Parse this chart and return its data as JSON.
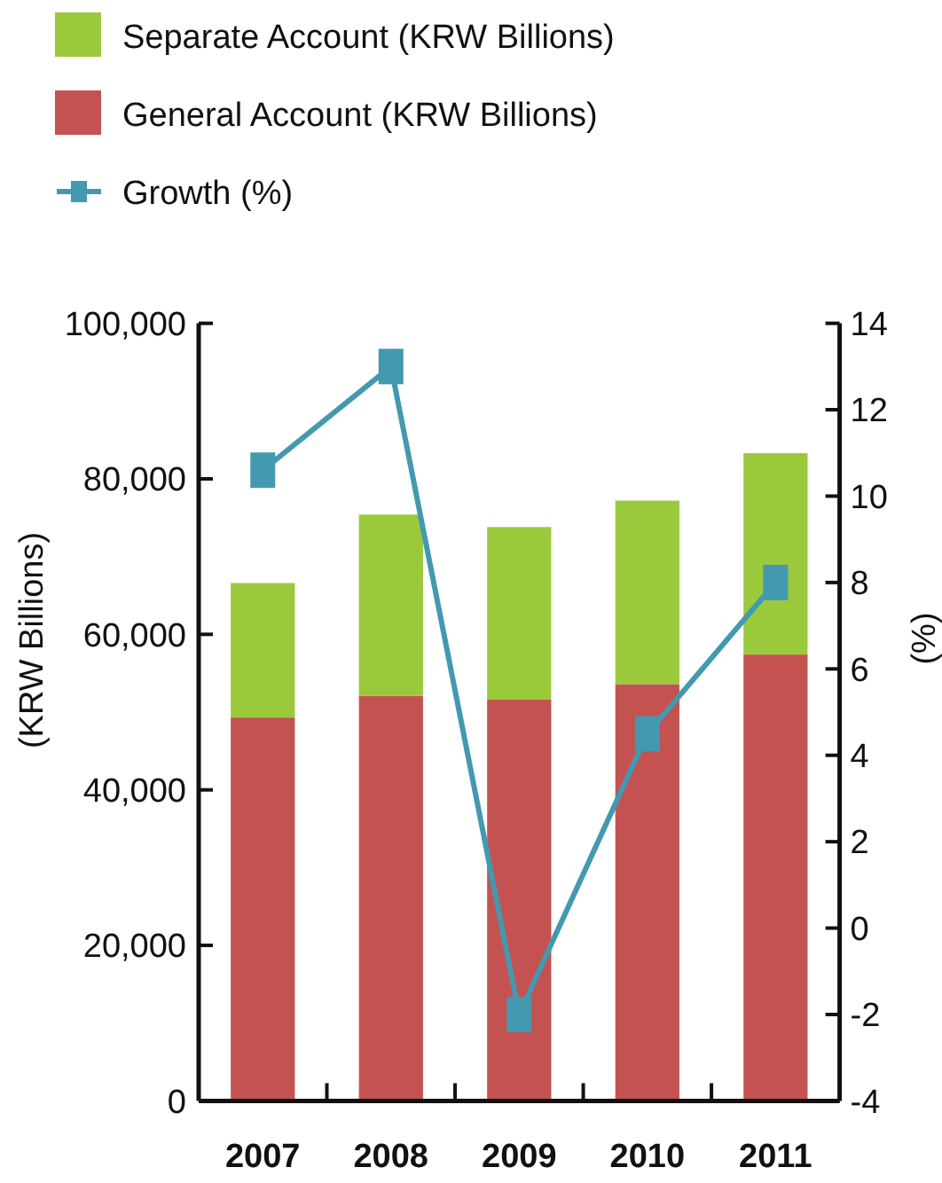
{
  "chart_data": {
    "type": "bar",
    "stacked": true,
    "categories": [
      "2007",
      "2008",
      "2009",
      "2010",
      "2011"
    ],
    "series": [
      {
        "name": "General Account (KRW Billions)",
        "color": "#c45250",
        "values": [
          49300,
          52100,
          51600,
          53600,
          57400
        ]
      },
      {
        "name": "Separate Account (KRW Billions)",
        "color": "#9ac93c",
        "values": [
          17300,
          23300,
          22200,
          23600,
          25900
        ]
      },
      {
        "name": "Growth (%)",
        "type": "line",
        "axis": "y2",
        "color": "#4399b0",
        "values": [
          10.6,
          13.0,
          -2.0,
          4.5,
          8.0
        ]
      }
    ],
    "ylabel": "(KRW Billions)",
    "y2label": "(%)",
    "ylim": [
      0,
      100000
    ],
    "yticks": [
      0,
      {
        "value": 20000,
        "label": "20,000"
      },
      {
        "value": 40000,
        "label": "40,000"
      },
      {
        "value": 60000,
        "label": "60,000"
      },
      {
        "value": 80000,
        "label": "80,000"
      },
      {
        "value": 100000,
        "label": "100,000"
      }
    ],
    "y2lim": [
      -4,
      14
    ],
    "y2ticks": [
      -4,
      -2,
      0,
      2,
      4,
      6,
      8,
      10,
      12,
      14
    ],
    "legend": "top left",
    "marker": "square"
  }
}
